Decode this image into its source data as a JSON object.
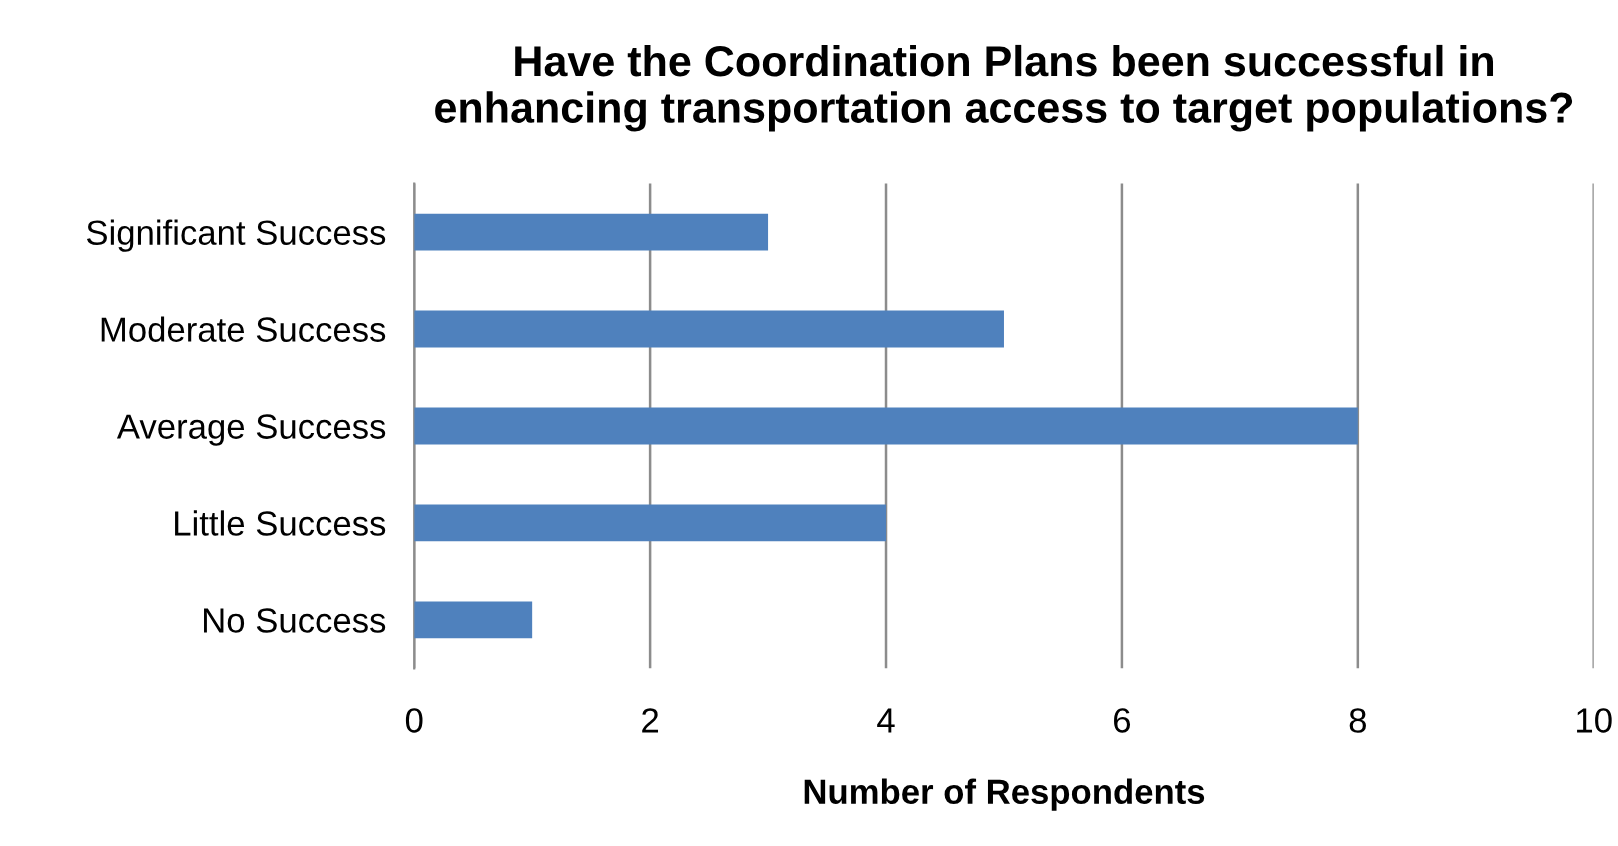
{
  "chart_data": {
    "type": "bar",
    "orientation": "horizontal",
    "title": "Have the Coordination Plans been successful in\nenhancing transportation access to target populations?",
    "xlabel": "Number of Respondents",
    "categories": [
      "Significant Success",
      "Moderate Success",
      "Average Success",
      "Little Success",
      "No Success"
    ],
    "values": [
      3,
      5,
      8,
      4,
      1
    ],
    "color": "#4f81bd",
    "xlim": [
      0,
      10
    ],
    "xticks": [
      0,
      2,
      4,
      6,
      8,
      10
    ],
    "grid": "x",
    "legend": false
  }
}
